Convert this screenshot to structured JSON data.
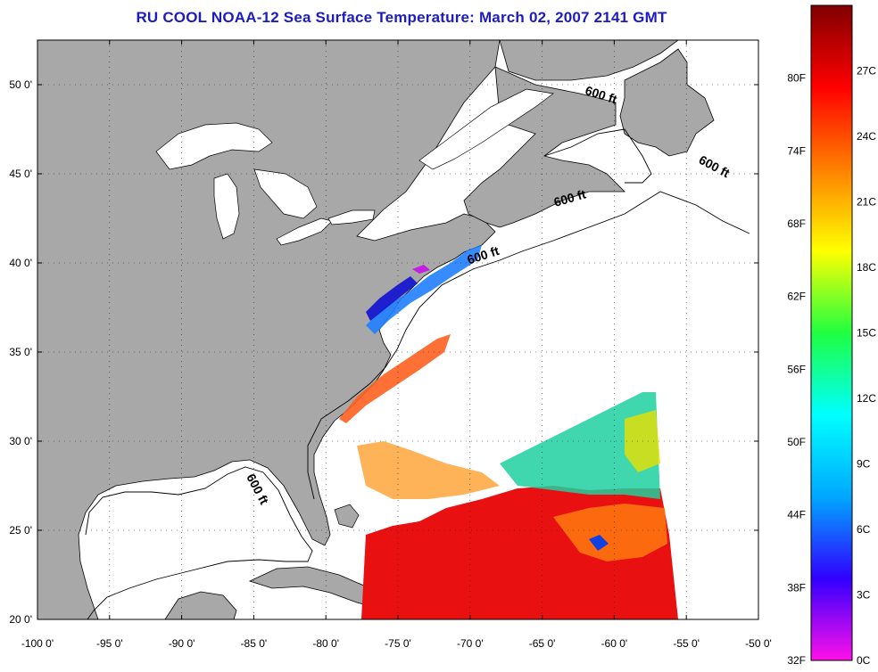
{
  "title": "RU COOL  NOAA-12  Sea Surface Temperature:  March 02, 2007 2141 GMT",
  "map": {
    "lon_range": [
      -100,
      -50
    ],
    "lat_range": [
      20,
      52.5
    ],
    "lon_ticks": [
      "-100 0'",
      "-95 0'",
      "-90 0'",
      "-85 0'",
      "-80 0'",
      "-75 0'",
      "-70 0'",
      "-65 0'",
      "-60 0'",
      "-55 0'",
      "-50 0'"
    ],
    "lat_ticks": [
      "20 0'",
      "25 0'",
      "30 0'",
      "35 0'",
      "40 0'",
      "45 0'",
      "50 0'"
    ],
    "land_color": "#a8a8a8",
    "ocean_color": "#ffffff",
    "grid": "dotted",
    "isobath_labels": [
      {
        "text": "600 ft",
        "lon": -61.0,
        "lat": 49.2,
        "rot": 18
      },
      {
        "text": "600 ft",
        "lon": -53.2,
        "lat": 45.2,
        "rot": 28
      },
      {
        "text": "600 ft",
        "lon": -63.0,
        "lat": 43.4,
        "rot": -16
      },
      {
        "text": "600 ft",
        "lon": -69.0,
        "lat": 40.2,
        "rot": -18
      },
      {
        "text": "600 ft",
        "lon": -85.0,
        "lat": 27.2,
        "rot": 62
      }
    ]
  },
  "colorbar": {
    "f_labels": [
      "32F",
      "38F",
      "44F",
      "50F",
      "56F",
      "62F",
      "68F",
      "74F",
      "80F"
    ],
    "c_labels": [
      "0C",
      "3C",
      "6C",
      "9C",
      "12C",
      "15C",
      "18C",
      "21C",
      "24C",
      "27C"
    ],
    "colors": [
      "#ff10e8",
      "#3000ff",
      "#00a8ff",
      "#00ffff",
      "#20ff40",
      "#ffff00",
      "#ff8000",
      "#ff0000",
      "#800000"
    ]
  }
}
